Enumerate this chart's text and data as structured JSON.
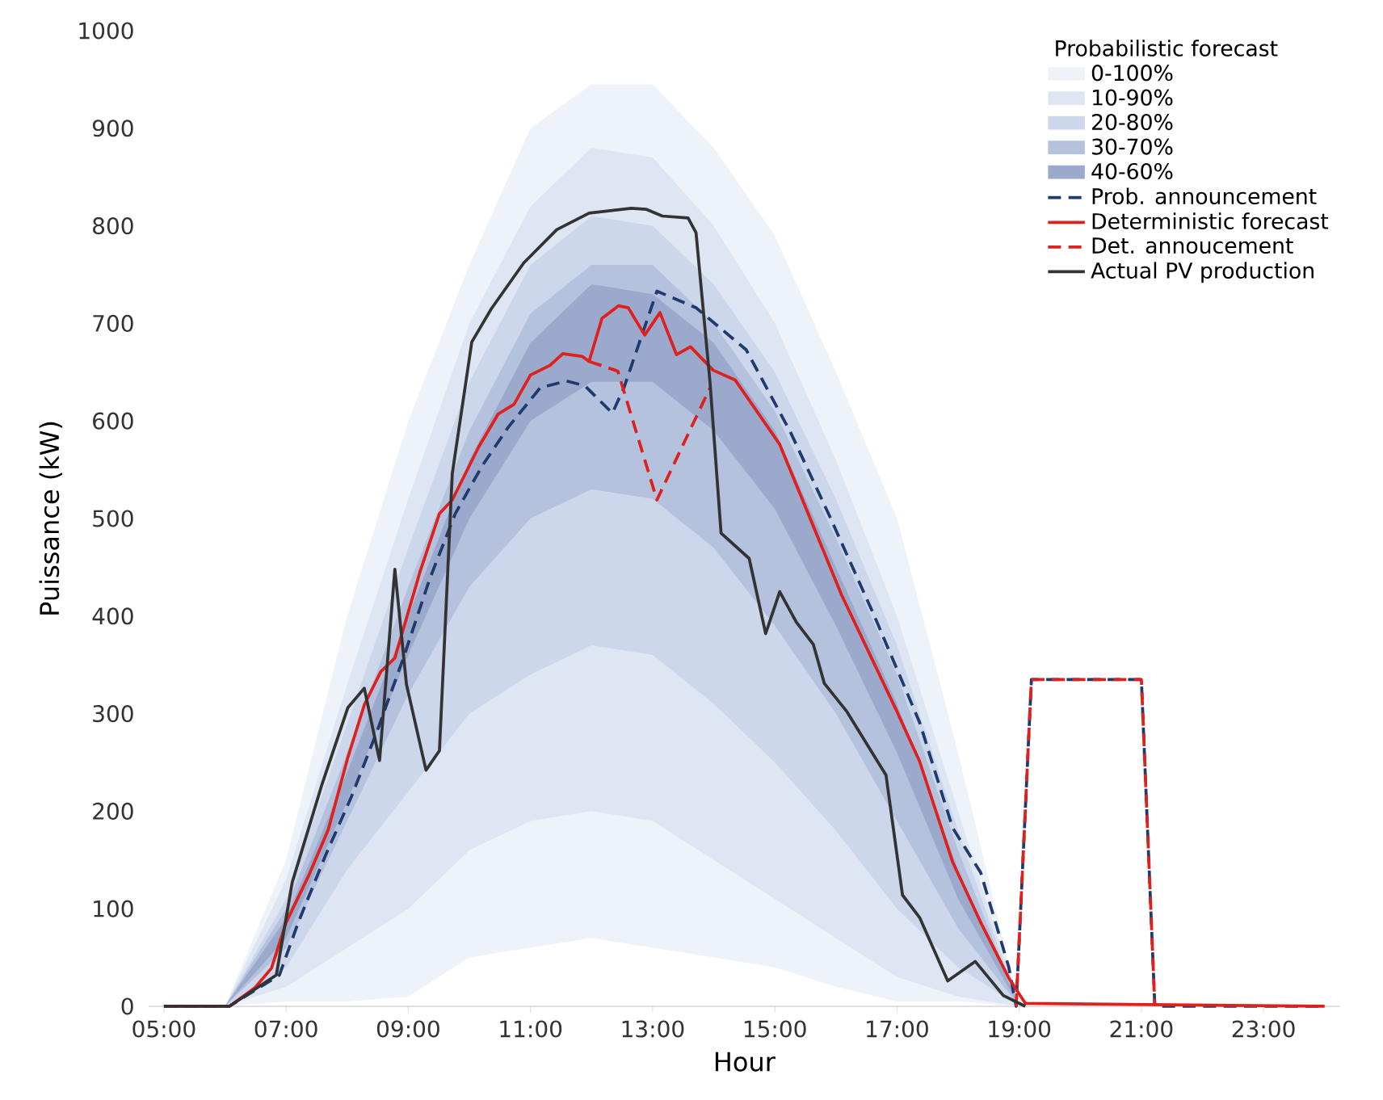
{
  "chart_data": {
    "type": "line",
    "xlabel": "Hour",
    "ylabel": "Puissance (kW)",
    "legend_title": "Probabilistic forecast",
    "legend": "top right",
    "xlim": [
      4.75,
      24.25
    ],
    "ylim": [
      0,
      1000
    ],
    "xticks": [
      {
        "value": 5,
        "label": "05:00"
      },
      {
        "value": 7,
        "label": "07:00"
      },
      {
        "value": 9,
        "label": "09:00"
      },
      {
        "value": 11,
        "label": "11:00"
      },
      {
        "value": 13,
        "label": "13:00"
      },
      {
        "value": 15,
        "label": "15:00"
      },
      {
        "value": 17,
        "label": "17:00"
      },
      {
        "value": 19,
        "label": "19:00"
      },
      {
        "value": 21,
        "label": "21:00"
      },
      {
        "value": 23,
        "label": "23:00"
      }
    ],
    "yticks": [
      0,
      100,
      200,
      300,
      400,
      500,
      600,
      700,
      800,
      900,
      1000
    ],
    "series": [
      {
        "name": "0-100%",
        "type": "area",
        "color": "#eef2f9",
        "x": [
          5,
          6,
          7,
          8,
          9,
          10,
          11,
          12,
          13,
          14,
          15,
          16,
          17,
          18,
          19
        ],
        "values": [
          null,
          null,
          null,
          null,
          null,
          null,
          null,
          null,
          null,
          null,
          null,
          null,
          null,
          null,
          null
        ],
        "lower": [
          0,
          0,
          5,
          5,
          10,
          50,
          60,
          70,
          60,
          50,
          40,
          20,
          5,
          5,
          0
        ],
        "upper": [
          0,
          0,
          150,
          400,
          600,
          760,
          900,
          945,
          945,
          880,
          790,
          650,
          500,
          260,
          0
        ]
      },
      {
        "name": "10-90%",
        "type": "area",
        "color": "#dfe6f3",
        "x": [
          5,
          6,
          7,
          8,
          9,
          10,
          11,
          12,
          13,
          14,
          15,
          16,
          17,
          18,
          19
        ],
        "values": [
          null,
          null,
          null,
          null,
          null,
          null,
          null,
          null,
          null,
          null,
          null,
          null,
          null,
          null,
          null
        ],
        "lower": [
          0,
          0,
          20,
          60,
          100,
          160,
          190,
          200,
          190,
          150,
          110,
          70,
          30,
          10,
          0
        ],
        "upper": [
          0,
          0,
          130,
          330,
          520,
          700,
          820,
          880,
          870,
          800,
          700,
          560,
          400,
          200,
          0
        ]
      },
      {
        "name": "20-80%",
        "type": "area",
        "color": "#cdd7ec",
        "x": [
          5,
          6,
          7,
          8,
          9,
          10,
          11,
          12,
          13,
          14,
          15,
          16,
          17,
          18,
          19
        ],
        "values": [
          null,
          null,
          null,
          null,
          null,
          null,
          null,
          null,
          null,
          null,
          null,
          null,
          null,
          null,
          null
        ],
        "lower": [
          0,
          0,
          40,
          140,
          220,
          300,
          340,
          370,
          360,
          310,
          250,
          180,
          100,
          40,
          0
        ],
        "upper": [
          0,
          0,
          110,
          290,
          470,
          640,
          760,
          810,
          800,
          740,
          650,
          520,
          370,
          180,
          0
        ]
      },
      {
        "name": "30-70%",
        "type": "area",
        "color": "#b4c2de",
        "x": [
          5,
          6,
          7,
          8,
          9,
          10,
          11,
          12,
          13,
          14,
          15,
          16,
          17,
          18,
          19
        ],
        "values": [
          null,
          null,
          null,
          null,
          null,
          null,
          null,
          null,
          null,
          null,
          null,
          null,
          null,
          null,
          null
        ],
        "lower": [
          0,
          0,
          60,
          190,
          320,
          430,
          500,
          530,
          520,
          470,
          390,
          300,
          190,
          80,
          0
        ],
        "upper": [
          0,
          0,
          100,
          260,
          430,
          590,
          710,
          760,
          760,
          700,
          610,
          480,
          340,
          160,
          0
        ]
      },
      {
        "name": "40-60%",
        "type": "area",
        "color": "#9aa9cc",
        "x": [
          5,
          6,
          7,
          8,
          9,
          10,
          11,
          12,
          13,
          14,
          15,
          16,
          17,
          18,
          19
        ],
        "values": [
          null,
          null,
          null,
          null,
          null,
          null,
          null,
          null,
          null,
          null,
          null,
          null,
          null,
          null,
          null
        ],
        "lower": [
          0,
          0,
          70,
          210,
          360,
          500,
          600,
          640,
          640,
          590,
          510,
          390,
          260,
          110,
          0
        ],
        "upper": [
          0,
          0,
          90,
          240,
          400,
          560,
          680,
          740,
          730,
          680,
          590,
          450,
          310,
          140,
          0
        ]
      },
      {
        "name": "Prob. announcement",
        "line_style": "dashed",
        "color": "#1f3a6e",
        "x": [
          5,
          6.07,
          6.89,
          7.2,
          7.64,
          8.07,
          8.49,
          8.92,
          9.35,
          9.77,
          10.2,
          10.63,
          11.16,
          11.59,
          11.89,
          12.34,
          12.53,
          13.07,
          13.71,
          14.53,
          15.26,
          15.9,
          16.63,
          17.37,
          17.91,
          18.37,
          18.83,
          18.95,
          19.2,
          21.0,
          21.22,
          24.0
        ],
        "values": [
          0,
          0,
          32,
          86,
          154,
          215,
          282,
          357,
          438,
          505,
          553,
          593,
          634,
          641,
          636,
          608,
          634,
          733,
          716,
          673,
          588,
          502,
          400,
          291,
          183,
          137,
          40,
          0,
          335,
          335,
          0,
          0
        ]
      },
      {
        "name": "Deterministic forecast",
        "line_style": "solid",
        "color": "#e0201c",
        "x": [
          5,
          6.07,
          6.49,
          6.76,
          7.0,
          7.37,
          7.69,
          8.01,
          8.28,
          8.55,
          8.78,
          9.19,
          9.51,
          9.72,
          10.15,
          10.47,
          10.73,
          11.0,
          11.32,
          11.53,
          11.85,
          11.96,
          12.17,
          12.44,
          12.6,
          12.87,
          13.12,
          13.39,
          13.62,
          13.99,
          14.35,
          15.08,
          16.09,
          17.0,
          17.37,
          17.91,
          18.37,
          18.83,
          19.1,
          24.0
        ],
        "values": [
          0,
          0,
          19,
          39,
          86,
          134,
          181,
          255,
          309,
          343,
          357,
          445,
          505,
          519,
          573,
          607,
          617,
          647,
          657,
          669,
          666,
          661,
          705,
          718,
          716,
          688,
          711,
          668,
          676,
          652,
          642,
          576,
          422,
          302,
          251,
          148,
          86,
          29,
          3,
          0
        ]
      },
      {
        "name": "Det. annoucement",
        "line_style": "dashed",
        "color": "#e0201c",
        "x": [
          11.96,
          12.43,
          13.07,
          13.94,
          16.0,
          18.95,
          19.2,
          21.0,
          21.22
        ],
        "values": [
          661,
          651,
          519,
          634,
          null,
          0,
          335,
          335,
          0
        ]
      },
      {
        "name": "Actual PV production",
        "line_style": "solid",
        "color": "#333333",
        "x": [
          5,
          6.07,
          6.84,
          7.1,
          7.59,
          8.01,
          8.28,
          8.53,
          8.78,
          8.97,
          9.29,
          9.51,
          9.72,
          10.04,
          10.36,
          10.89,
          11.43,
          11.96,
          12.65,
          12.89,
          13.16,
          13.58,
          13.71,
          13.94,
          14.12,
          14.58,
          14.85,
          15.08,
          15.35,
          15.63,
          15.81,
          16.18,
          16.82,
          17.09,
          17.37,
          17.83,
          18.28,
          18.74,
          19.1
        ],
        "values": [
          0,
          0,
          32,
          127,
          228,
          306,
          326,
          252,
          448,
          330,
          242,
          262,
          546,
          681,
          715,
          762,
          796,
          813,
          818,
          817,
          810,
          808,
          793,
          639,
          485,
          459,
          382,
          425,
          394,
          371,
          331,
          302,
          237,
          114,
          91,
          26,
          46,
          11,
          0
        ]
      }
    ]
  }
}
